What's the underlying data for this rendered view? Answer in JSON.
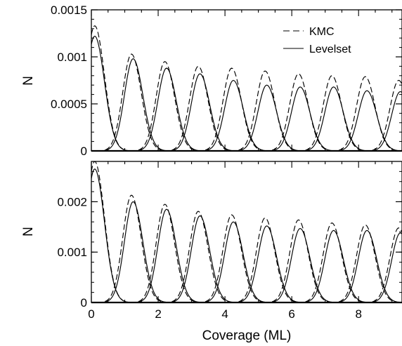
{
  "chart_data": [
    {
      "type": "line",
      "panel": "top",
      "title": "",
      "xlabel": "",
      "ylabel": "N",
      "xlim": [
        0,
        9.3
      ],
      "ylim": [
        0,
        0.0015
      ],
      "y_ticks": [
        0,
        0.0005,
        0.001,
        0.0015
      ],
      "y_tick_labels": [
        "0",
        "0.0005",
        "0.001",
        "0.0015"
      ],
      "grid": false,
      "legend": {
        "placement": "top-right",
        "entries": [
          {
            "name": "KMC",
            "style": "dashed"
          },
          {
            "name": "Levelset",
            "style": "solid"
          }
        ]
      },
      "series": [
        {
          "name": "KMC",
          "style": "dashed",
          "peaks": [
            {
              "x": 0.1,
              "y": 0.00133
            },
            {
              "x": 1.2,
              "y": 0.00103
            },
            {
              "x": 2.2,
              "y": 0.00095
            },
            {
              "x": 3.2,
              "y": 0.0009
            },
            {
              "x": 4.2,
              "y": 0.00088
            },
            {
              "x": 5.2,
              "y": 0.00085
            },
            {
              "x": 6.2,
              "y": 0.00082
            },
            {
              "x": 7.2,
              "y": 0.0008
            },
            {
              "x": 8.2,
              "y": 0.00079
            },
            {
              "x": 9.2,
              "y": 0.00075
            }
          ]
        },
        {
          "name": "Levelset",
          "style": "solid",
          "peaks": [
            {
              "x": 0.1,
              "y": 0.00122
            },
            {
              "x": 1.25,
              "y": 0.00098
            },
            {
              "x": 2.25,
              "y": 0.00088
            },
            {
              "x": 3.25,
              "y": 0.00082
            },
            {
              "x": 4.25,
              "y": 0.00075
            },
            {
              "x": 5.25,
              "y": 0.0007
            },
            {
              "x": 6.25,
              "y": 0.00068
            },
            {
              "x": 7.25,
              "y": 0.00068
            },
            {
              "x": 8.25,
              "y": 0.00064
            },
            {
              "x": 9.25,
              "y": 0.00063
            }
          ]
        }
      ]
    },
    {
      "type": "line",
      "panel": "bottom",
      "title": "",
      "xlabel": "Coverage (ML)",
      "ylabel": "N",
      "xlim": [
        0,
        9.3
      ],
      "ylim": [
        0,
        0.0028
      ],
      "x_ticks": [
        0,
        2,
        4,
        6,
        8
      ],
      "x_tick_labels": [
        "0",
        "2",
        "4",
        "6",
        "8"
      ],
      "y_ticks": [
        0,
        0.001,
        0.002
      ],
      "y_tick_labels": [
        "0",
        "0.001",
        "0.002"
      ],
      "grid": false,
      "series": [
        {
          "name": "KMC",
          "style": "dashed",
          "peaks": [
            {
              "x": 0.1,
              "y": 0.0028
            },
            {
              "x": 1.2,
              "y": 0.00213
            },
            {
              "x": 2.2,
              "y": 0.00195
            },
            {
              "x": 3.2,
              "y": 0.00181
            },
            {
              "x": 4.2,
              "y": 0.00174
            },
            {
              "x": 5.2,
              "y": 0.00168
            },
            {
              "x": 6.2,
              "y": 0.00164
            },
            {
              "x": 7.2,
              "y": 0.00158
            },
            {
              "x": 8.2,
              "y": 0.00154
            },
            {
              "x": 9.2,
              "y": 0.00148
            }
          ]
        },
        {
          "name": "Levelset",
          "style": "solid",
          "peaks": [
            {
              "x": 0.1,
              "y": 0.00265
            },
            {
              "x": 1.25,
              "y": 0.002
            },
            {
              "x": 2.25,
              "y": 0.00185
            },
            {
              "x": 3.25,
              "y": 0.00172
            },
            {
              "x": 4.25,
              "y": 0.0016
            },
            {
              "x": 5.25,
              "y": 0.00152
            },
            {
              "x": 6.25,
              "y": 0.00147
            },
            {
              "x": 7.25,
              "y": 0.00143
            },
            {
              "x": 8.25,
              "y": 0.00143
            },
            {
              "x": 9.25,
              "y": 0.00138
            }
          ]
        }
      ]
    }
  ]
}
